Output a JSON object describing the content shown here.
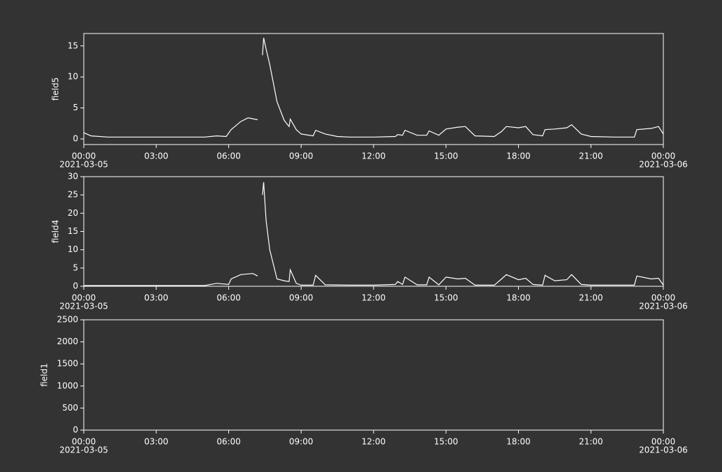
{
  "chart_data": [
    {
      "type": "line",
      "y_label": "field5",
      "x": [
        0,
        0.3,
        1,
        2,
        3,
        4,
        5,
        5.5,
        5.9,
        6.1,
        6.5,
        6.8,
        7.2,
        7.3,
        7.4,
        7.45,
        7.55,
        7.7,
        8,
        8.3,
        8.5,
        8.55,
        8.8,
        9,
        9.5,
        9.6,
        10,
        10.5,
        11,
        12,
        12.9,
        13,
        13.2,
        13.3,
        13.8,
        14.2,
        14.3,
        14.7,
        15,
        15.5,
        15.8,
        16.2,
        17,
        17.3,
        17.5,
        18,
        18.3,
        18.6,
        19,
        19.1,
        19.5,
        20,
        20.2,
        20.6,
        21,
        22,
        22.8,
        22.9,
        23.5,
        23.8,
        24
      ],
      "series": [
        {
          "color": "#ffffff",
          "values": [
            1.0,
            0.5,
            0.3,
            0.3,
            0.3,
            0.3,
            0.3,
            0.5,
            0.4,
            1.5,
            2.8,
            3.4,
            3.1,
            null,
            13.5,
            16.3,
            14.5,
            12,
            6,
            3,
            2.0,
            3.2,
            1.5,
            0.8,
            0.5,
            1.4,
            0.8,
            0.4,
            0.3,
            0.3,
            0.4,
            0.7,
            0.6,
            1.4,
            0.6,
            0.6,
            1.3,
            0.6,
            1.6,
            1.9,
            2.0,
            0.5,
            0.4,
            1.2,
            2.0,
            1.8,
            2.0,
            0.7,
            0.5,
            1.5,
            1.6,
            1.8,
            2.3,
            0.8,
            0.4,
            0.3,
            0.3,
            1.5,
            1.7,
            2.0,
            0.8
          ]
        }
      ],
      "xlim": [
        0,
        24
      ],
      "xticks": [
        {
          "value": 0,
          "label": "00:00"
        },
        {
          "value": 3,
          "label": "03:00"
        },
        {
          "value": 6,
          "label": "06:00"
        },
        {
          "value": 9,
          "label": "09:00"
        },
        {
          "value": 12,
          "label": "12:00"
        },
        {
          "value": 15,
          "label": "15:00"
        },
        {
          "value": 18,
          "label": "18:00"
        },
        {
          "value": 21,
          "label": "21:00"
        },
        {
          "value": 24,
          "label": "00:00"
        }
      ],
      "date_labels": [
        "2021-03-05",
        "2021-03-06"
      ],
      "ylim": [
        -0.9,
        17
      ],
      "yticks": [
        0,
        5,
        10,
        15
      ]
    },
    {
      "type": "line",
      "y_label": "field4",
      "x": [
        0,
        1,
        2,
        3,
        4,
        5,
        5.5,
        6,
        6.1,
        6.5,
        7,
        7.2,
        7.3,
        7.4,
        7.45,
        7.55,
        7.7,
        8,
        8.3,
        8.5,
        8.55,
        8.8,
        9,
        9.5,
        9.6,
        10,
        11,
        12,
        12.9,
        13,
        13.2,
        13.3,
        13.8,
        14.2,
        14.3,
        14.7,
        15,
        15.5,
        15.8,
        16.2,
        17,
        17.3,
        17.5,
        18,
        18.3,
        18.6,
        19,
        19.1,
        19.5,
        20,
        20.2,
        20.6,
        21,
        22,
        22.8,
        22.9,
        23.5,
        23.8,
        24
      ],
      "series": [
        {
          "color": "#ffffff",
          "values": [
            0.2,
            0.2,
            0.2,
            0.2,
            0.2,
            0.2,
            0.8,
            0.5,
            2.0,
            3.2,
            3.5,
            2.8,
            null,
            25,
            28.5,
            18,
            10,
            2,
            1.5,
            1.3,
            4.5,
            0.8,
            0.3,
            0.3,
            3.0,
            0.4,
            0.3,
            0.3,
            0.5,
            1.3,
            0.5,
            2.5,
            0.4,
            0.4,
            2.5,
            0.4,
            2.5,
            2.0,
            2.2,
            0.3,
            0.3,
            2.0,
            3.2,
            1.8,
            2.2,
            0.5,
            0.3,
            3.0,
            1.5,
            1.8,
            3.2,
            0.5,
            0.3,
            0.3,
            0.3,
            2.8,
            2.0,
            2.2,
            0.3
          ]
        }
      ],
      "xlim": [
        0,
        24
      ],
      "xticks": [
        {
          "value": 0,
          "label": "00:00"
        },
        {
          "value": 3,
          "label": "03:00"
        },
        {
          "value": 6,
          "label": "06:00"
        },
        {
          "value": 9,
          "label": "09:00"
        },
        {
          "value": 12,
          "label": "12:00"
        },
        {
          "value": 15,
          "label": "15:00"
        },
        {
          "value": 18,
          "label": "18:00"
        },
        {
          "value": 21,
          "label": "21:00"
        },
        {
          "value": 24,
          "label": "00:00"
        }
      ],
      "date_labels": [
        "2021-03-05",
        "2021-03-06"
      ],
      "ylim": [
        0,
        30
      ],
      "yticks": [
        0,
        5,
        10,
        15,
        20,
        25,
        30
      ]
    },
    {
      "type": "line",
      "y_label": "field1",
      "x": [],
      "series": [],
      "xlim": [
        0,
        24
      ],
      "xticks": [
        {
          "value": 0,
          "label": "00:00"
        },
        {
          "value": 3,
          "label": "03:00"
        },
        {
          "value": 6,
          "label": "06:00"
        },
        {
          "value": 9,
          "label": "09:00"
        },
        {
          "value": 12,
          "label": "12:00"
        },
        {
          "value": 15,
          "label": "15:00"
        },
        {
          "value": 18,
          "label": "18:00"
        },
        {
          "value": 21,
          "label": "21:00"
        },
        {
          "value": 24,
          "label": "00:00"
        }
      ],
      "date_labels": [
        "2021-03-05",
        "2021-03-06"
      ],
      "ylim": [
        0,
        2500
      ],
      "yticks": [
        0,
        500,
        1000,
        1500,
        2000,
        2500
      ]
    }
  ]
}
